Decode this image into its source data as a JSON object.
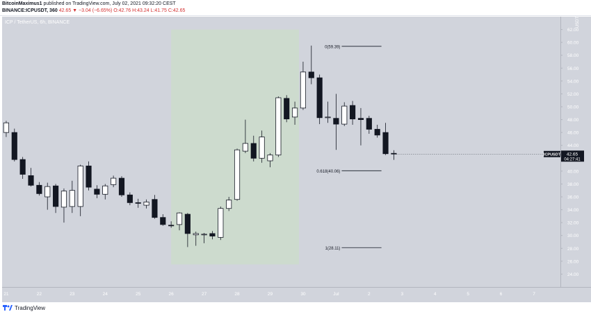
{
  "header": {
    "author": "BitcoinMaximus1",
    "published_text": " published on TradingView.com, July 02, 2021 09:32:20 CEST",
    "symbol_line": "BINANCE:ICPUSDT, 360",
    "ohlc": "42.65 ▼ −3.04 (−6.65%) O:42.76 H:43.24 L:41.75 C:42.65"
  },
  "footer": {
    "brand": "TradingView"
  },
  "chart_data": {
    "type": "candlestick",
    "watermark": "ICP / TetherUS, 6h, BINANCE",
    "currency": "USDT",
    "price_label": {
      "symbol": "ICPUSDT",
      "price": "42.65",
      "time": "04:27:41",
      "value": 42.65
    },
    "ylim": [
      22,
      64
    ],
    "y_ticks": [
      24,
      26,
      28,
      30,
      32,
      34,
      36,
      38,
      40,
      42,
      44,
      46,
      48,
      50,
      52,
      54,
      56,
      58,
      60,
      62
    ],
    "x_labels": [
      {
        "label": "21",
        "index": 0
      },
      {
        "label": "22",
        "index": 4
      },
      {
        "label": "23",
        "index": 8
      },
      {
        "label": "24",
        "index": 12
      },
      {
        "label": "25",
        "index": 16
      },
      {
        "label": "26",
        "index": 20
      },
      {
        "label": "27",
        "index": 24
      },
      {
        "label": "28",
        "index": 28
      },
      {
        "label": "29",
        "index": 32
      },
      {
        "label": "30",
        "index": 36
      },
      {
        "label": "Jul",
        "index": 40
      },
      {
        "label": "2",
        "index": 44
      },
      {
        "label": "3",
        "index": 48
      },
      {
        "label": "4",
        "index": 52
      },
      {
        "label": "5",
        "index": 56
      },
      {
        "label": "6",
        "index": 60
      },
      {
        "label": "7",
        "index": 64
      }
    ],
    "x_range": [
      -0.5,
      67.2
    ],
    "highlight": {
      "from_index": 20,
      "to_index": 35.5,
      "y_low": 25.5,
      "y_high": 62
    },
    "fib_levels": [
      {
        "label": "0(59.39)",
        "value": 59.39,
        "from_index": 39.5,
        "to_index": 45.5
      },
      {
        "label": "0.618(40.06)",
        "value": 40.06,
        "from_index": 39.5,
        "to_index": 45.5
      },
      {
        "label": "1(28.11)",
        "value": 28.11,
        "from_index": 39.5,
        "to_index": 45.5
      }
    ],
    "candles": [
      {
        "o": 46.0,
        "h": 47.8,
        "l": 45.3,
        "c": 47.5
      },
      {
        "o": 46.0,
        "h": 46.6,
        "l": 41.5,
        "c": 41.8
      },
      {
        "o": 41.8,
        "h": 42.2,
        "l": 38.8,
        "c": 39.5
      },
      {
        "o": 39.3,
        "h": 40.5,
        "l": 37.6,
        "c": 37.8
      },
      {
        "o": 37.8,
        "h": 38.3,
        "l": 36.2,
        "c": 36.5
      },
      {
        "o": 36.0,
        "h": 38.2,
        "l": 34.0,
        "c": 37.6
      },
      {
        "o": 37.7,
        "h": 38.0,
        "l": 33.5,
        "c": 34.5
      },
      {
        "o": 34.4,
        "h": 37.3,
        "l": 32.0,
        "c": 36.9
      },
      {
        "o": 34.5,
        "h": 38.5,
        "l": 33.5,
        "c": 37.0
      },
      {
        "o": 34.5,
        "h": 41.0,
        "l": 33.0,
        "c": 40.8
      },
      {
        "o": 40.8,
        "h": 41.5,
        "l": 37.0,
        "c": 37.5
      },
      {
        "o": 37.2,
        "h": 37.8,
        "l": 35.8,
        "c": 36.4
      },
      {
        "o": 36.4,
        "h": 38.0,
        "l": 35.6,
        "c": 37.7
      },
      {
        "o": 37.9,
        "h": 39.3,
        "l": 37.5,
        "c": 38.9
      },
      {
        "o": 38.9,
        "h": 39.2,
        "l": 36.0,
        "c": 36.3
      },
      {
        "o": 36.3,
        "h": 36.7,
        "l": 34.7,
        "c": 35.1
      },
      {
        "o": 35.1,
        "h": 35.7,
        "l": 34.3,
        "c": 35.0
      },
      {
        "o": 34.7,
        "h": 35.6,
        "l": 34.2,
        "c": 35.2
      },
      {
        "o": 35.6,
        "h": 36.3,
        "l": 32.6,
        "c": 32.8
      },
      {
        "o": 32.8,
        "h": 33.3,
        "l": 31.5,
        "c": 31.7
      },
      {
        "o": 31.6,
        "h": 32.2,
        "l": 31.2,
        "c": 31.5
      },
      {
        "o": 31.7,
        "h": 33.6,
        "l": 30.8,
        "c": 33.5
      },
      {
        "o": 33.3,
        "h": 33.5,
        "l": 28.2,
        "c": 30.3
      },
      {
        "o": 30.1,
        "h": 30.6,
        "l": 28.4,
        "c": 30.3
      },
      {
        "o": 30.2,
        "h": 30.4,
        "l": 28.8,
        "c": 30.2
      },
      {
        "o": 30.3,
        "h": 30.7,
        "l": 29.4,
        "c": 29.9
      },
      {
        "o": 29.7,
        "h": 34.5,
        "l": 29.3,
        "c": 34.2
      },
      {
        "o": 34.2,
        "h": 36.0,
        "l": 33.8,
        "c": 35.5
      },
      {
        "o": 35.6,
        "h": 43.5,
        "l": 35.4,
        "c": 43.3
      },
      {
        "o": 43.1,
        "h": 48.0,
        "l": 42.8,
        "c": 44.3
      },
      {
        "o": 44.3,
        "h": 45.5,
        "l": 41.5,
        "c": 42.0
      },
      {
        "o": 42.0,
        "h": 46.3,
        "l": 41.3,
        "c": 45.3
      },
      {
        "o": 41.6,
        "h": 42.8,
        "l": 40.6,
        "c": 42.5
      },
      {
        "o": 42.5,
        "h": 51.6,
        "l": 42.2,
        "c": 51.4
      },
      {
        "o": 51.3,
        "h": 51.8,
        "l": 47.6,
        "c": 48.1
      },
      {
        "o": 48.4,
        "h": 50.8,
        "l": 47.2,
        "c": 49.8
      },
      {
        "o": 49.8,
        "h": 57.0,
        "l": 49.5,
        "c": 55.4
      },
      {
        "o": 55.4,
        "h": 59.5,
        "l": 53.5,
        "c": 54.5
      },
      {
        "o": 54.5,
        "h": 55.0,
        "l": 47.3,
        "c": 48.3
      },
      {
        "o": 48.4,
        "h": 50.8,
        "l": 47.5,
        "c": 48.4
      },
      {
        "o": 48.2,
        "h": 52.0,
        "l": 43.3,
        "c": 47.3
      },
      {
        "o": 47.3,
        "h": 50.7,
        "l": 47.0,
        "c": 50.1
      },
      {
        "o": 50.2,
        "h": 50.9,
        "l": 47.2,
        "c": 48.1
      },
      {
        "o": 48.2,
        "h": 49.8,
        "l": 44.0,
        "c": 48.0
      },
      {
        "o": 48.2,
        "h": 48.6,
        "l": 45.8,
        "c": 46.5
      },
      {
        "o": 46.5,
        "h": 47.2,
        "l": 45.2,
        "c": 45.6
      },
      {
        "o": 46.0,
        "h": 47.5,
        "l": 42.5,
        "c": 42.7
      },
      {
        "o": 42.76,
        "h": 43.24,
        "l": 41.75,
        "c": 42.65
      }
    ]
  }
}
